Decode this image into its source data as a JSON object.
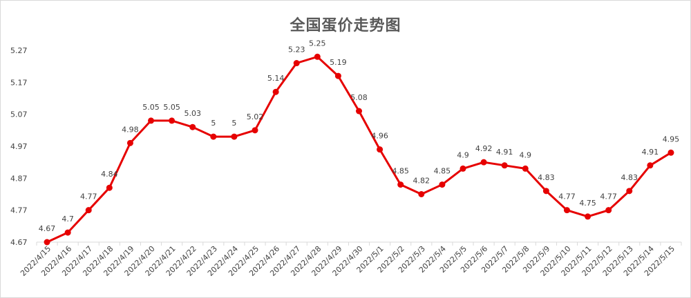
{
  "chart_data": {
    "type": "line",
    "title": "全国蛋价走势图",
    "xlabel": "",
    "ylabel": "",
    "ylim": [
      4.67,
      5.27
    ],
    "yticks": [
      4.67,
      4.77,
      4.87,
      4.97,
      5.07,
      5.17,
      5.27
    ],
    "grid": false,
    "legend": "none",
    "line_color": "#e60000",
    "categories": [
      "2022/4/15",
      "2022/4/16",
      "2022/4/17",
      "2022/4/18",
      "2022/4/19",
      "2022/4/20",
      "2022/4/21",
      "2022/4/22",
      "2022/4/23",
      "2022/4/24",
      "2022/4/25",
      "2022/4/26",
      "2022/4/27",
      "2022/4/28",
      "2022/4/29",
      "2022/4/30",
      "2022/5/1",
      "2022/5/2",
      "2022/5/3",
      "2022/5/4",
      "2022/5/5",
      "2022/5/6",
      "2022/5/7",
      "2022/5/8",
      "2022/5/9",
      "2022/5/10",
      "2022/5/11",
      "2022/5/12",
      "2022/5/13",
      "2022/5/14",
      "2022/5/15"
    ],
    "values": [
      4.67,
      4.7,
      4.77,
      4.84,
      4.98,
      5.05,
      5.05,
      5.03,
      5,
      5,
      5.02,
      5.14,
      5.23,
      5.25,
      5.19,
      5.08,
      4.96,
      4.85,
      4.82,
      4.85,
      4.9,
      4.92,
      4.91,
      4.9,
      4.83,
      4.77,
      4.75,
      4.77,
      4.83,
      4.91,
      4.95
    ]
  }
}
